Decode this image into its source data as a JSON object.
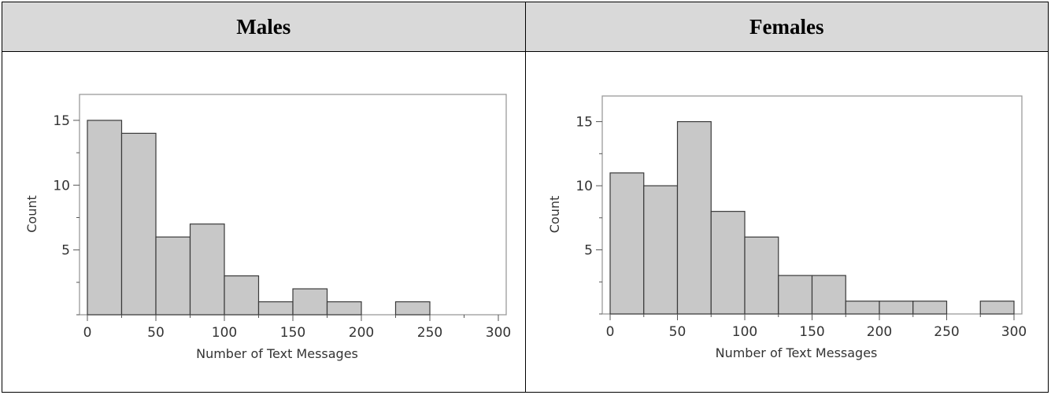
{
  "headers": {
    "left": "Males",
    "right": "Females"
  },
  "colors": {
    "header_bg": "#d9d9d9",
    "bar_fill": "#c8c8c8",
    "bar_stroke": "#3a3a3a",
    "frame": "#9a9a9a"
  },
  "chart_data": [
    {
      "type": "bar",
      "group": "Males",
      "bin_width": 25,
      "bins": [
        {
          "from": 0,
          "to": 25,
          "count": 15
        },
        {
          "from": 25,
          "to": 50,
          "count": 14
        },
        {
          "from": 50,
          "to": 75,
          "count": 6
        },
        {
          "from": 75,
          "to": 100,
          "count": 7
        },
        {
          "from": 100,
          "to": 125,
          "count": 3
        },
        {
          "from": 125,
          "to": 150,
          "count": 1
        },
        {
          "from": 150,
          "to": 175,
          "count": 2
        },
        {
          "from": 175,
          "to": 200,
          "count": 1
        },
        {
          "from": 200,
          "to": 225,
          "count": 0
        },
        {
          "from": 225,
          "to": 250,
          "count": 1
        },
        {
          "from": 250,
          "to": 275,
          "count": 0
        },
        {
          "from": 275,
          "to": 300,
          "count": 0
        }
      ],
      "xlabel": "Number of Text Messages",
      "ylabel": "Count",
      "xticks": [
        0,
        50,
        100,
        150,
        200,
        250,
        300
      ],
      "yticks": [
        5,
        10,
        15
      ],
      "xlim": [
        0,
        300
      ],
      "ylim": [
        0,
        17
      ],
      "grid": false
    },
    {
      "type": "bar",
      "group": "Females",
      "bin_width": 25,
      "bins": [
        {
          "from": 0,
          "to": 25,
          "count": 11
        },
        {
          "from": 25,
          "to": 50,
          "count": 10
        },
        {
          "from": 50,
          "to": 75,
          "count": 15
        },
        {
          "from": 75,
          "to": 100,
          "count": 8
        },
        {
          "from": 100,
          "to": 125,
          "count": 6
        },
        {
          "from": 125,
          "to": 150,
          "count": 3
        },
        {
          "from": 150,
          "to": 175,
          "count": 3
        },
        {
          "from": 175,
          "to": 200,
          "count": 1
        },
        {
          "from": 200,
          "to": 225,
          "count": 1
        },
        {
          "from": 225,
          "to": 250,
          "count": 1
        },
        {
          "from": 250,
          "to": 275,
          "count": 0
        },
        {
          "from": 275,
          "to": 300,
          "count": 1
        }
      ],
      "xlabel": "Number of Text Messages",
      "ylabel": "Count",
      "xticks": [
        0,
        50,
        100,
        150,
        200,
        250,
        300
      ],
      "yticks": [
        5,
        10,
        15
      ],
      "xlim": [
        0,
        300
      ],
      "ylim": [
        0,
        17
      ],
      "grid": false
    }
  ]
}
